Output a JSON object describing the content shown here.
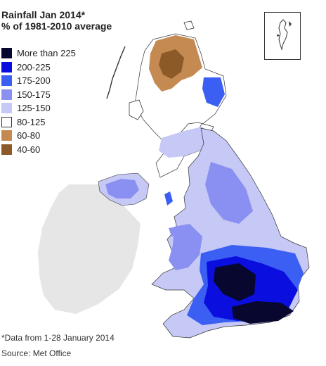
{
  "title": {
    "line1": "Rainfall Jan 2014*",
    "line2": "% of 1981-2010 average"
  },
  "legend": [
    {
      "label": "More than 225",
      "color": "#07072f"
    },
    {
      "label": "200-225",
      "color": "#0a0fe0"
    },
    {
      "label": "175-200",
      "color": "#3a5ff2"
    },
    {
      "label": "150-175",
      "color": "#8a90f2"
    },
    {
      "label": "125-150",
      "color": "#c6c8f6"
    },
    {
      "label": "80-125",
      "color": "#ffffff"
    },
    {
      "label": "60-80",
      "color": "#c48a52"
    },
    {
      "label": "40-60",
      "color": "#8c5a28"
    }
  ],
  "footnote": "*Data from 1-28 January 2014",
  "source": "Source: Met Office",
  "colors": {
    "ireland": "#e6e6e6",
    "border": "#333333",
    "text": "#222222"
  }
}
